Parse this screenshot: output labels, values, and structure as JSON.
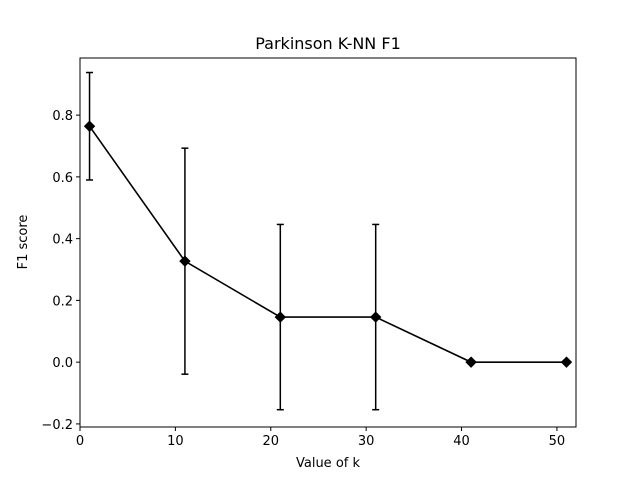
{
  "chart_data": {
    "type": "line",
    "title": "Parkinson K-NN F1",
    "xlabel": "Value of k",
    "ylabel": "F1 score",
    "xlim": [
      0,
      52
    ],
    "ylim": [
      -0.21,
      0.985
    ],
    "xticks": [
      0,
      10,
      20,
      30,
      40,
      50
    ],
    "xtick_labels": [
      "0",
      "10",
      "20",
      "30",
      "40",
      "50"
    ],
    "yticks": [
      -0.2,
      0.0,
      0.2,
      0.4,
      0.6,
      0.8
    ],
    "ytick_labels": [
      "−0.2",
      "0.0",
      "0.2",
      "0.4",
      "0.6",
      "0.8"
    ],
    "grid": false,
    "series": [
      {
        "x": [
          1,
          11,
          21,
          31,
          41,
          51
        ],
        "values": [
          0.764,
          0.327,
          0.146,
          0.146,
          0.0,
          0.0
        ],
        "error": [
          0.174,
          0.366,
          0.3,
          0.3,
          0.0,
          0.0
        ],
        "color": "#000000",
        "marker": "diamond"
      }
    ]
  }
}
